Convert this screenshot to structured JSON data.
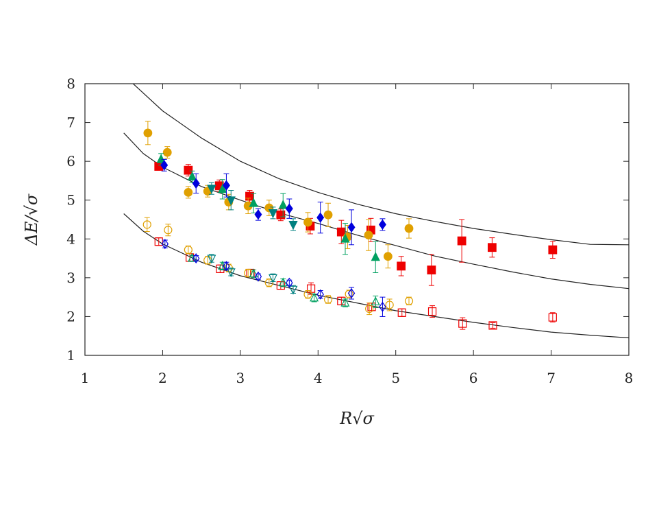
{
  "chart_data": {
    "type": "scatter",
    "title": "",
    "xlabel": "R√σ",
    "ylabel": "ΔE/√σ",
    "xlim": [
      1,
      8
    ],
    "ylim": [
      1,
      8
    ],
    "xticks": [
      1,
      2,
      3,
      4,
      5,
      6,
      7,
      8
    ],
    "yticks": [
      1,
      2,
      3,
      4,
      5,
      6,
      7,
      8
    ],
    "grid": false,
    "legend": "none",
    "curves": [
      {
        "x": [
          1.62,
          2.0,
          2.5,
          3.0,
          3.5,
          4.0,
          4.5,
          5.0,
          5.5,
          6.0,
          6.5,
          7.0,
          7.5,
          8.0
        ],
        "y": [
          8.0,
          7.3,
          6.6,
          6.0,
          5.55,
          5.2,
          4.9,
          4.65,
          4.45,
          4.27,
          4.12,
          3.98,
          3.86,
          3.85
        ],
        "color": "#222222"
      },
      {
        "x": [
          1.5,
          1.75,
          2.0,
          2.5,
          3.0,
          3.5,
          4.0,
          4.5,
          5.0,
          5.5,
          6.0,
          6.5,
          7.0,
          7.5,
          8.0
        ],
        "y": [
          6.73,
          6.2,
          5.85,
          5.35,
          5.0,
          4.67,
          4.4,
          4.1,
          3.83,
          3.56,
          3.35,
          3.15,
          2.97,
          2.83,
          2.72
        ],
        "color": "#222222"
      },
      {
        "x": [
          1.5,
          1.75,
          2.0,
          2.5,
          3.0,
          3.5,
          4.0,
          4.5,
          5.0,
          5.5,
          6.0,
          6.5,
          7.0,
          7.5,
          8.0
        ],
        "y": [
          4.65,
          4.2,
          3.87,
          3.4,
          3.05,
          2.8,
          2.55,
          2.35,
          2.15,
          2.0,
          1.85,
          1.72,
          1.6,
          1.52,
          1.45
        ],
        "color": "#222222"
      }
    ],
    "series": [
      {
        "marker": "square",
        "filled": true,
        "color": "#ee0000",
        "points": [
          [
            1.95,
            5.87,
            0.05
          ],
          [
            2.33,
            5.77,
            0.15
          ],
          [
            2.73,
            5.37,
            0.15
          ],
          [
            3.12,
            5.1,
            0.15
          ],
          [
            3.52,
            4.62,
            0.15
          ],
          [
            3.9,
            4.33,
            0.2
          ],
          [
            4.3,
            4.18,
            0.3
          ],
          [
            4.68,
            4.23,
            0.3
          ],
          [
            5.07,
            3.3,
            0.25
          ],
          [
            5.46,
            3.2,
            0.4
          ],
          [
            5.85,
            3.95,
            0.55
          ],
          [
            6.24,
            3.78,
            0.25
          ],
          [
            7.02,
            3.72,
            0.22
          ]
        ]
      },
      {
        "marker": "circle",
        "filled": true,
        "color": "#e0a000",
        "points": [
          [
            1.81,
            6.73,
            0.3
          ],
          [
            2.06,
            6.23,
            0.15
          ],
          [
            2.33,
            5.2,
            0.15
          ],
          [
            2.58,
            5.23,
            0.15
          ],
          [
            2.85,
            4.95,
            0.2
          ],
          [
            3.1,
            4.85,
            0.2
          ],
          [
            3.37,
            4.8,
            0.2
          ],
          [
            3.87,
            4.43,
            0.25
          ],
          [
            4.13,
            4.62,
            0.3
          ],
          [
            4.38,
            4.05,
            0.3
          ],
          [
            4.65,
            4.1,
            0.4
          ],
          [
            4.9,
            3.55,
            0.3
          ],
          [
            5.17,
            4.27,
            0.25
          ]
        ]
      },
      {
        "marker": "triangle-up",
        "filled": true,
        "color": "#00a060",
        "points": [
          [
            1.98,
            6.05,
            0.15
          ],
          [
            2.38,
            5.6,
            0.15
          ],
          [
            2.77,
            5.28,
            0.25
          ],
          [
            3.17,
            4.92,
            0.25
          ],
          [
            3.55,
            4.87,
            0.3
          ],
          [
            4.35,
            4.0,
            0.4
          ],
          [
            4.74,
            3.53,
            0.4
          ]
        ]
      },
      {
        "marker": "triangle-down",
        "filled": true,
        "color": "#008080",
        "points": [
          [
            2.63,
            5.3,
            0.15
          ],
          [
            2.88,
            5.0,
            0.25
          ],
          [
            3.42,
            4.67,
            0.15
          ],
          [
            3.68,
            4.37,
            0.15
          ]
        ]
      },
      {
        "marker": "diamond",
        "filled": true,
        "color": "#0000dd",
        "points": [
          [
            2.02,
            5.9,
            0.15
          ],
          [
            2.43,
            5.43,
            0.25
          ],
          [
            2.82,
            5.38,
            0.3
          ],
          [
            3.23,
            4.63,
            0.15
          ],
          [
            3.63,
            4.78,
            0.25
          ],
          [
            4.03,
            4.55,
            0.4
          ],
          [
            4.43,
            4.3,
            0.45
          ],
          [
            4.83,
            4.37,
            0.15
          ]
        ]
      },
      {
        "marker": "square",
        "filled": false,
        "color": "#ee0000",
        "points": [
          [
            1.95,
            3.93,
            0.1
          ],
          [
            2.35,
            3.52,
            0.1
          ],
          [
            2.74,
            3.23,
            0.1
          ],
          [
            3.13,
            3.12,
            0.1
          ],
          [
            3.52,
            2.8,
            0.1
          ],
          [
            3.91,
            2.72,
            0.15
          ],
          [
            4.3,
            2.4,
            0.1
          ],
          [
            4.69,
            2.25,
            0.1
          ],
          [
            5.08,
            2.1,
            0.1
          ],
          [
            5.47,
            2.13,
            0.15
          ],
          [
            5.86,
            1.82,
            0.15
          ],
          [
            6.25,
            1.77,
            0.07
          ],
          [
            7.02,
            1.98,
            0.12
          ]
        ]
      },
      {
        "marker": "circle",
        "filled": false,
        "color": "#e0a000",
        "points": [
          [
            1.8,
            4.37,
            0.18
          ],
          [
            2.07,
            4.23,
            0.15
          ],
          [
            2.33,
            3.72,
            0.1
          ],
          [
            2.58,
            3.45,
            0.1
          ],
          [
            2.85,
            3.25,
            0.1
          ],
          [
            3.1,
            3.12,
            0.1
          ],
          [
            3.37,
            2.87,
            0.1
          ],
          [
            3.87,
            2.57,
            0.1
          ],
          [
            4.13,
            2.44,
            0.1
          ],
          [
            4.4,
            2.58,
            0.1
          ],
          [
            4.66,
            2.2,
            0.15
          ],
          [
            4.92,
            2.3,
            0.15
          ],
          [
            5.17,
            2.4,
            0.1
          ]
        ]
      },
      {
        "marker": "triangle-up",
        "filled": false,
        "color": "#00a060",
        "points": [
          [
            2.38,
            3.5,
            0.07
          ],
          [
            2.77,
            3.3,
            0.1
          ],
          [
            3.17,
            3.1,
            0.1
          ],
          [
            3.55,
            2.87,
            0.1
          ],
          [
            3.95,
            2.48,
            0.1
          ],
          [
            4.35,
            2.35,
            0.1
          ],
          [
            4.74,
            2.38,
            0.15
          ]
        ]
      },
      {
        "marker": "triangle-down",
        "filled": false,
        "color": "#008080",
        "points": [
          [
            2.63,
            3.5,
            0.1
          ],
          [
            2.88,
            3.15,
            0.1
          ],
          [
            3.42,
            3.0,
            0.1
          ],
          [
            3.68,
            2.7,
            0.1
          ]
        ]
      },
      {
        "marker": "diamond",
        "filled": false,
        "color": "#0000dd",
        "points": [
          [
            2.03,
            3.87,
            0.1
          ],
          [
            2.43,
            3.5,
            0.07
          ],
          [
            2.82,
            3.3,
            0.1
          ],
          [
            3.23,
            3.03,
            0.07
          ],
          [
            3.63,
            2.87,
            0.07
          ],
          [
            4.03,
            2.57,
            0.1
          ],
          [
            4.43,
            2.6,
            0.15
          ],
          [
            4.83,
            2.25,
            0.25
          ]
        ]
      }
    ]
  }
}
